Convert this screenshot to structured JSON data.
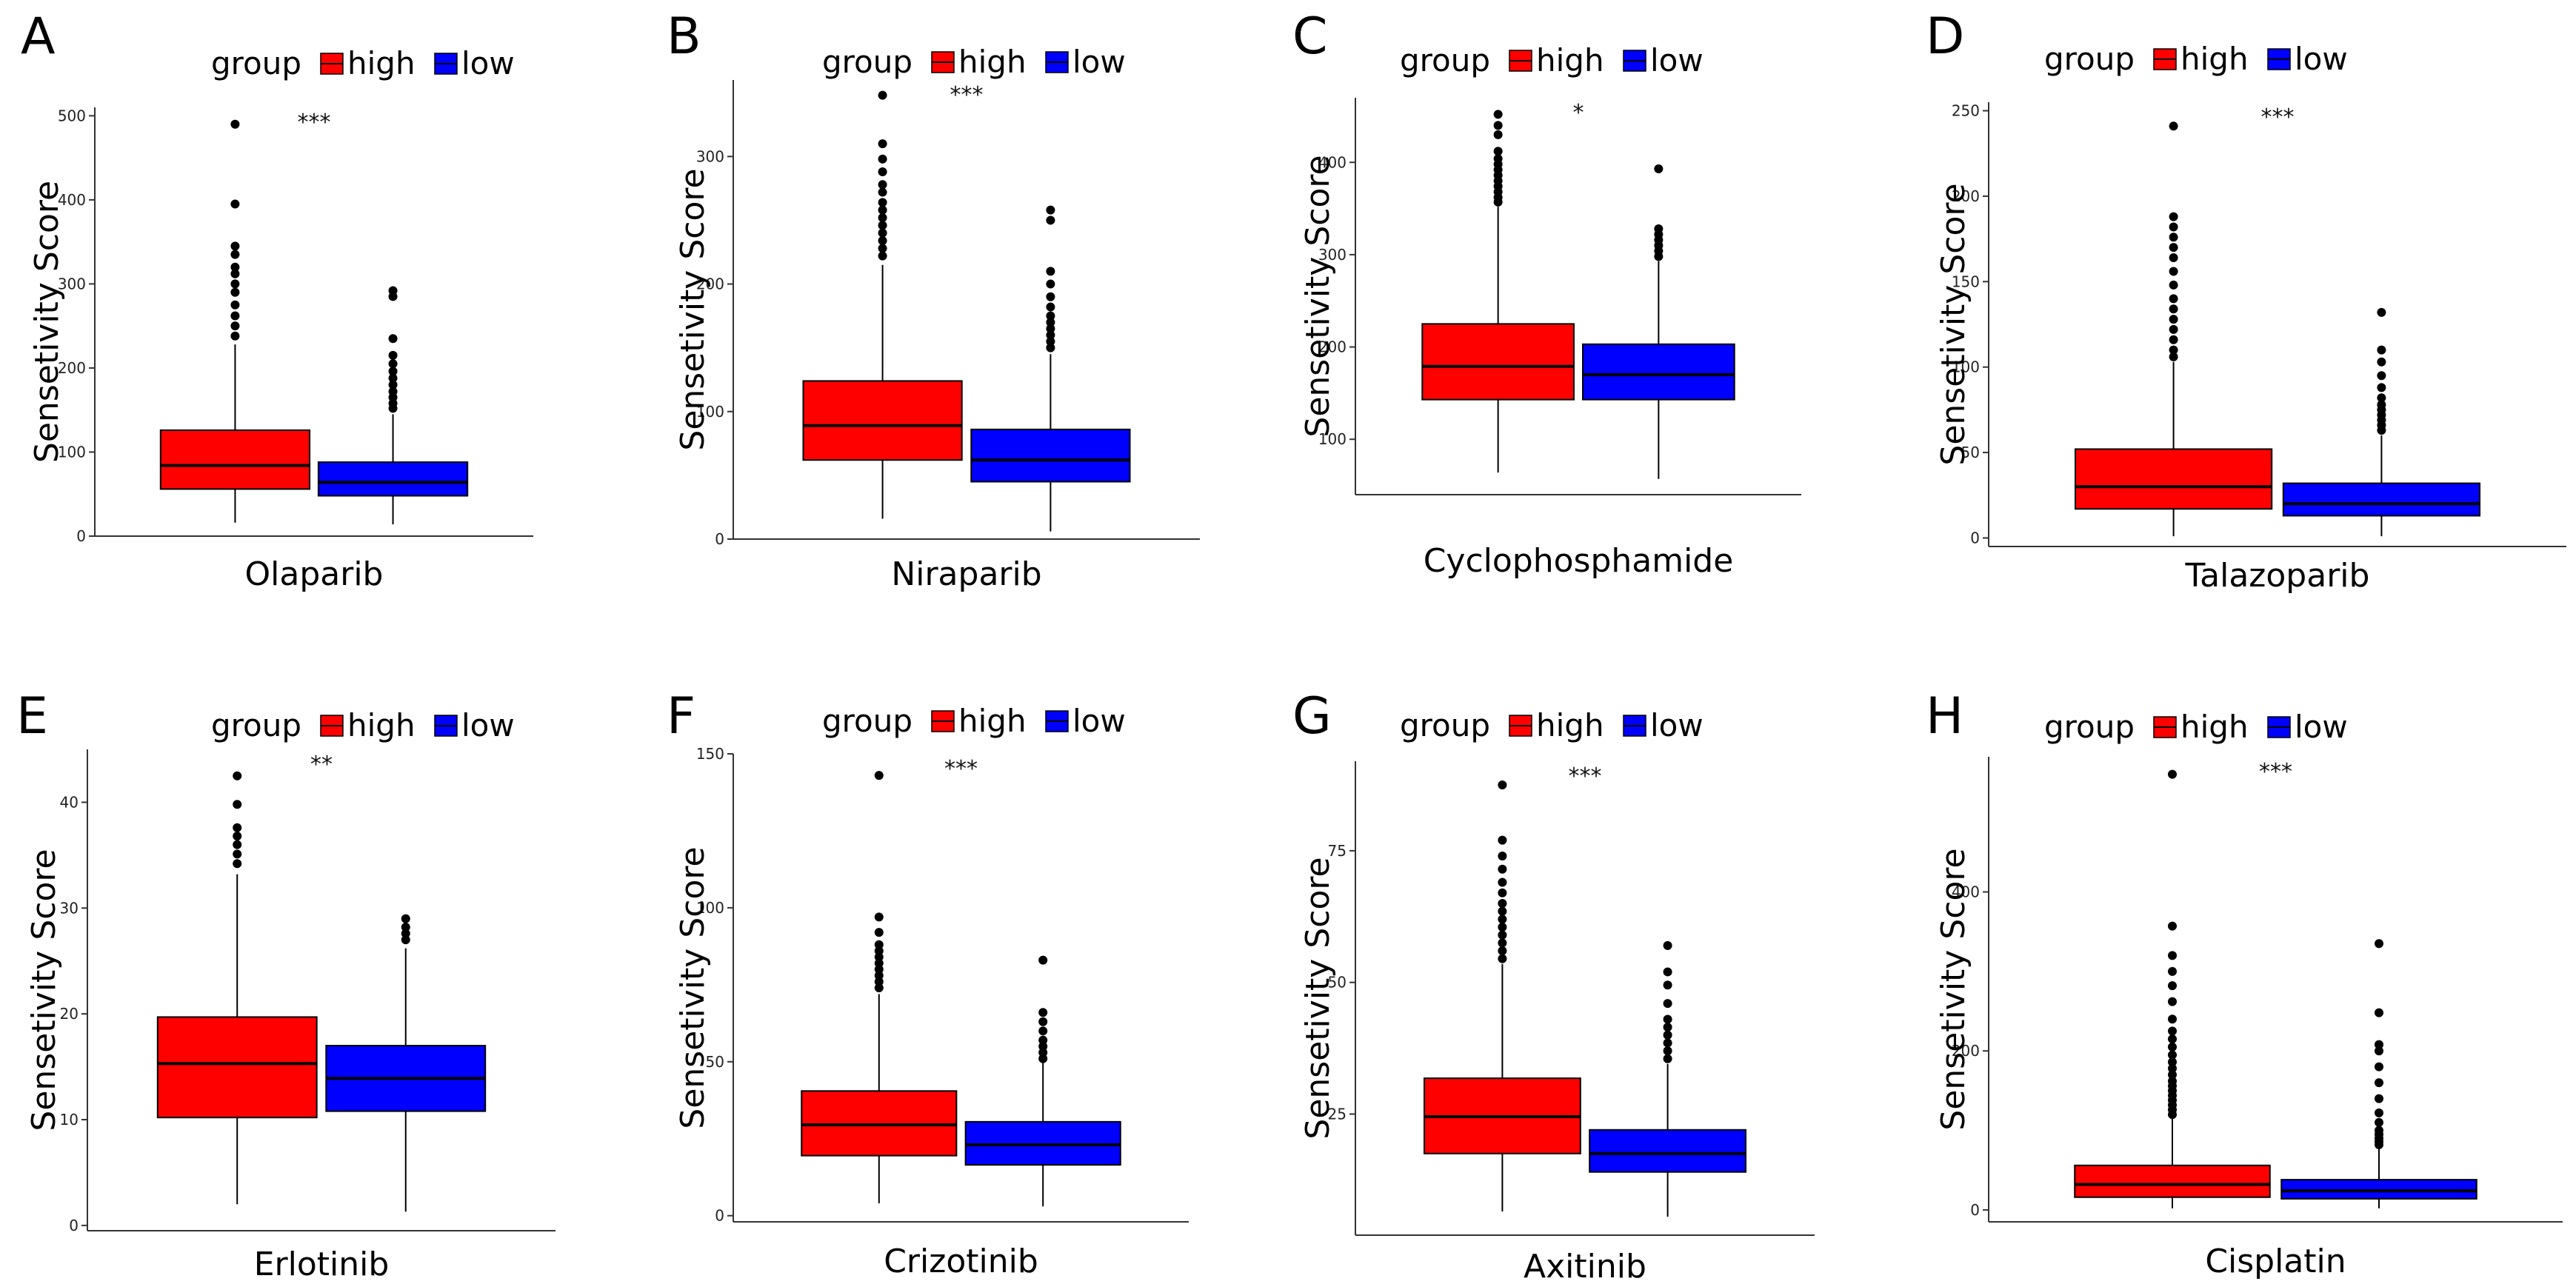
{
  "figure": {
    "legend_title": "group",
    "legend_items": [
      {
        "label": "high",
        "color": "#ff0000"
      },
      {
        "label": "low",
        "color": "#0000ff"
      }
    ],
    "colors": {
      "high": "#ff0000",
      "low": "#0000ff",
      "outline": "#000000"
    }
  },
  "chart_data": [
    {
      "letter": "A",
      "type": "box",
      "title": "",
      "xlabel": "Olaparib",
      "ylabel": "Sensetivity Score",
      "ylim": [
        0,
        510
      ],
      "yticks": [
        0,
        100,
        200,
        300,
        400,
        500
      ],
      "significance": "***",
      "series": [
        {
          "name": "high",
          "whisker_low": 16,
          "q1": 56,
          "median": 84,
          "q3": 126,
          "whisker_high": 228,
          "outliers": [
            238,
            250,
            262,
            275,
            290,
            300,
            312,
            320,
            335,
            345,
            395,
            490
          ]
        },
        {
          "name": "low",
          "whisker_low": 14,
          "q1": 48,
          "median": 64,
          "q3": 88,
          "whisker_high": 145,
          "outliers": [
            152,
            158,
            165,
            172,
            180,
            188,
            196,
            205,
            215,
            235,
            285,
            292
          ]
        }
      ]
    },
    {
      "letter": "B",
      "type": "box",
      "title": "",
      "xlabel": "Niraparib",
      "ylabel": "Sensetivity Score",
      "ylim": [
        0,
        360
      ],
      "yticks": [
        0,
        100,
        200,
        300
      ],
      "significance": "***",
      "series": [
        {
          "name": "high",
          "whisker_low": 16,
          "q1": 62,
          "median": 89,
          "q3": 124,
          "whisker_high": 215,
          "outliers": [
            222,
            228,
            234,
            240,
            246,
            252,
            258,
            264,
            272,
            278,
            288,
            298,
            310,
            348
          ]
        },
        {
          "name": "low",
          "whisker_low": 6,
          "q1": 45,
          "median": 62,
          "q3": 86,
          "whisker_high": 145,
          "outliers": [
            150,
            155,
            160,
            165,
            170,
            175,
            182,
            190,
            200,
            210,
            250,
            258
          ]
        }
      ]
    },
    {
      "letter": "C",
      "type": "box",
      "title": "",
      "xlabel": "Cyclophosphamide",
      "ylabel": "Sensetivity Score",
      "ylim": [
        40,
        470
      ],
      "yticks": [
        100,
        200,
        300,
        400
      ],
      "significance": "*",
      "series": [
        {
          "name": "high",
          "whisker_low": 64,
          "q1": 143,
          "median": 179,
          "q3": 225,
          "whisker_high": 352,
          "outliers": [
            357,
            362,
            368,
            374,
            380,
            386,
            392,
            398,
            404,
            412,
            430,
            440,
            452
          ]
        },
        {
          "name": "low",
          "whisker_low": 57,
          "q1": 143,
          "median": 170,
          "q3": 203,
          "whisker_high": 293,
          "outliers": [
            298,
            304,
            310,
            316,
            322,
            328,
            393
          ]
        }
      ]
    },
    {
      "letter": "D",
      "type": "box",
      "title": "",
      "xlabel": "Talazoparib",
      "ylabel": "Sensetivity Score",
      "ylim": [
        -5,
        255
      ],
      "yticks": [
        0,
        50,
        100,
        150,
        200,
        250
      ],
      "significance": "***",
      "series": [
        {
          "name": "high",
          "whisker_low": 1,
          "q1": 17,
          "median": 30,
          "q3": 52,
          "whisker_high": 103,
          "outliers": [
            106,
            110,
            116,
            122,
            128,
            134,
            140,
            148,
            156,
            164,
            170,
            176,
            182,
            188,
            241
          ]
        },
        {
          "name": "low",
          "whisker_low": 1,
          "q1": 13,
          "median": 20,
          "q3": 32,
          "whisker_high": 60,
          "outliers": [
            63,
            66,
            69,
            72,
            75,
            78,
            82,
            88,
            95,
            103,
            110,
            132
          ]
        }
      ]
    },
    {
      "letter": "E",
      "type": "box",
      "title": "",
      "xlabel": "Erlotinib",
      "ylabel": "Sensetivity Score",
      "ylim": [
        -0.5,
        45
      ],
      "yticks": [
        0,
        10,
        20,
        30,
        40
      ],
      "significance": "**",
      "series": [
        {
          "name": "high",
          "whisker_low": 2,
          "q1": 10.2,
          "median": 15.3,
          "q3": 19.7,
          "whisker_high": 33.2,
          "outliers": [
            34.2,
            35.1,
            36.0,
            36.8,
            37.6,
            39.8,
            42.5
          ]
        },
        {
          "name": "low",
          "whisker_low": 1.3,
          "q1": 10.8,
          "median": 13.9,
          "q3": 17.0,
          "whisker_high": 26.2,
          "outliers": [
            27.0,
            27.6,
            28.2,
            29.0
          ]
        }
      ]
    },
    {
      "letter": "F",
      "type": "box",
      "title": "",
      "xlabel": "Crizotinib",
      "ylabel": "Sensetivity Score",
      "ylim": [
        -2,
        150
      ],
      "yticks": [
        0,
        50,
        100,
        150
      ],
      "significance": "***",
      "series": [
        {
          "name": "high",
          "whisker_low": 4,
          "q1": 19.5,
          "median": 29.5,
          "q3": 40.5,
          "whisker_high": 72,
          "outliers": [
            74,
            76,
            78,
            80,
            82,
            84,
            86,
            88,
            92,
            97,
            143
          ]
        },
        {
          "name": "low",
          "whisker_low": 3,
          "q1": 16.5,
          "median": 23,
          "q3": 30.5,
          "whisker_high": 50,
          "outliers": [
            51,
            53,
            55,
            57,
            60,
            63,
            66,
            83
          ]
        }
      ]
    },
    {
      "letter": "G",
      "type": "box",
      "title": "",
      "xlabel": "Axitinib",
      "ylabel": "Sensetivity Score",
      "ylim": [
        2,
        92
      ],
      "yticks": [
        25,
        50,
        75
      ],
      "significance": "***",
      "series": [
        {
          "name": "high",
          "whisker_low": 6.5,
          "q1": 17.5,
          "median": 24.5,
          "q3": 31.8,
          "whisker_high": 53.5,
          "outliers": [
            54.5,
            56,
            57.5,
            59,
            60.5,
            62,
            63.5,
            65,
            67,
            69,
            71.5,
            74,
            77,
            87.5
          ]
        },
        {
          "name": "low",
          "whisker_low": 5.5,
          "q1": 14,
          "median": 17.5,
          "q3": 22,
          "whisker_high": 34.5,
          "outliers": [
            35.5,
            37,
            38.5,
            40,
            41.5,
            43,
            46,
            49.5,
            52,
            57
          ]
        }
      ]
    },
    {
      "letter": "H",
      "type": "box",
      "title": "",
      "xlabel": "Cisplatin",
      "ylabel": "Sensetivity Score",
      "ylim": [
        -15,
        570
      ],
      "yticks": [
        0,
        200,
        400
      ],
      "significance": "***",
      "series": [
        {
          "name": "high",
          "whisker_low": 2,
          "q1": 16,
          "median": 32,
          "q3": 56,
          "whisker_high": 115,
          "outliers": [
            120,
            126,
            132,
            138,
            144,
            150,
            156,
            162,
            170,
            178,
            186,
            195,
            205,
            215,
            225,
            240,
            262,
            282,
            300,
            320,
            357,
            548
          ]
        },
        {
          "name": "low",
          "whisker_low": 2,
          "q1": 14,
          "median": 24,
          "q3": 38,
          "whisker_high": 78,
          "outliers": [
            82,
            86,
            90,
            95,
            100,
            110,
            122,
            140,
            160,
            180,
            200,
            208,
            248,
            335
          ]
        }
      ]
    }
  ]
}
